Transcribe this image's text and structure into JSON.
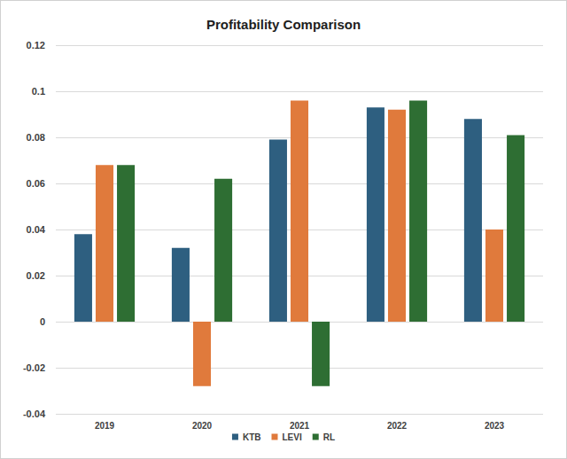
{
  "chart_data": {
    "type": "bar",
    "title": "Profitability Comparison",
    "categories": [
      "2019",
      "2020",
      "2021",
      "2022",
      "2023"
    ],
    "series": [
      {
        "name": "KTB",
        "color": "#2E5F80",
        "values": [
          0.038,
          0.032,
          0.079,
          0.093,
          0.088
        ]
      },
      {
        "name": "LEVI",
        "color": "#E07A3C",
        "values": [
          0.068,
          -0.028,
          0.096,
          0.092,
          0.04
        ]
      },
      {
        "name": "RL",
        "color": "#2E6E33",
        "values": [
          0.068,
          0.062,
          -0.028,
          0.096,
          0.081
        ]
      }
    ],
    "ylim": [
      -0.04,
      0.12
    ],
    "yticks": [
      -0.04,
      -0.02,
      0,
      0.02,
      0.04,
      0.06,
      0.08,
      0.1,
      0.12
    ],
    "grid": true,
    "legend": "bottom"
  }
}
